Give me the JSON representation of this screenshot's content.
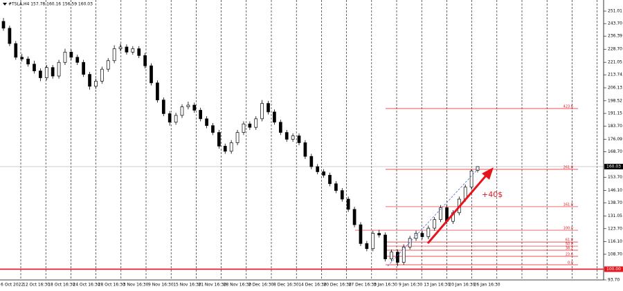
{
  "chart_data": {
    "type": "candlestick",
    "title": "#TSLA,H4 157.78 160.16 156.59 160.03",
    "x_labels": [
      "6 Oct 2022",
      "12 Oct 16:30",
      "18 Oct 16:30",
      "24 Oct 16:30",
      "28 Oct 16:30",
      "3 Nov 16:30",
      "9 Nov 16:30",
      "15 Nov 16:30",
      "21 Nov 16:30",
      "28 Nov 16:30",
      "2 Dec 16:30",
      "8 Dec 16:30",
      "14 Dec 16:30",
      "20 Dec 16:30",
      "27 Dec 16:30",
      "3 Jan 16:30",
      "9 Jan 16:30",
      "13 Jan 16:30",
      "20 Jan 16:30",
      "26 Jan 16:30"
    ],
    "ohlc": [
      [
        245,
        247,
        239.5,
        241
      ],
      [
        241,
        242.5,
        230.5,
        232
      ],
      [
        232,
        233.5,
        222.5,
        224
      ],
      [
        224,
        226,
        221.5,
        223
      ],
      [
        223,
        224.5,
        218.5,
        220
      ],
      [
        220,
        222,
        214.5,
        216
      ],
      [
        216,
        217.5,
        210,
        212
      ],
      [
        212,
        219.5,
        210.5,
        218
      ],
      [
        218,
        219.5,
        211.5,
        213
      ],
      [
        213,
        222.5,
        211.5,
        221
      ],
      [
        221,
        229,
        219.5,
        227
      ],
      [
        227,
        228.5,
        222.5,
        224
      ],
      [
        224,
        225.5,
        219.5,
        221
      ],
      [
        221,
        222.5,
        212.5,
        214
      ],
      [
        214,
        215.5,
        205,
        207
      ],
      [
        207,
        211.5,
        205.5,
        210
      ],
      [
        210,
        218.5,
        208.5,
        217
      ],
      [
        217,
        223.5,
        215.5,
        222
      ],
      [
        222,
        231,
        220.5,
        229
      ],
      [
        229,
        232,
        227.5,
        230
      ],
      [
        230,
        231.5,
        225.5,
        227
      ],
      [
        227,
        230.5,
        225.5,
        229
      ],
      [
        229,
        230.5,
        223.5,
        225
      ],
      [
        225,
        226.5,
        217.5,
        219
      ],
      [
        219,
        220.5,
        207.5,
        209
      ],
      [
        209,
        210.5,
        197.5,
        199
      ],
      [
        199,
        200.5,
        189.5,
        191
      ],
      [
        191,
        192.5,
        184,
        186
      ],
      [
        186,
        191.5,
        184.5,
        190
      ],
      [
        190,
        196.5,
        188.5,
        195
      ],
      [
        195,
        198,
        193.5,
        196
      ],
      [
        196,
        197.5,
        191.5,
        193
      ],
      [
        193,
        194.5,
        186.5,
        188
      ],
      [
        188,
        189.5,
        182.5,
        184
      ],
      [
        184,
        185.5,
        178.5,
        180
      ],
      [
        180,
        181.5,
        170.5,
        172
      ],
      [
        172,
        173.5,
        167.5,
        169
      ],
      [
        169,
        175.5,
        167.5,
        174
      ],
      [
        174,
        181.5,
        172.5,
        180
      ],
      [
        180,
        186.5,
        178.5,
        185
      ],
      [
        185,
        186.5,
        181.5,
        183
      ],
      [
        183,
        189.5,
        181.5,
        188
      ],
      [
        188,
        199,
        186.5,
        197
      ],
      [
        197,
        198.5,
        190.5,
        192
      ],
      [
        192,
        193.5,
        184.5,
        186
      ],
      [
        186,
        187.5,
        178.5,
        180
      ],
      [
        180,
        181.5,
        174.5,
        176
      ],
      [
        176,
        179.5,
        174.5,
        178
      ],
      [
        178,
        179.5,
        172.5,
        174
      ],
      [
        174,
        175.5,
        164.5,
        166
      ],
      [
        166,
        167.5,
        158.5,
        160
      ],
      [
        160,
        161.5,
        155.5,
        157
      ],
      [
        157,
        158.5,
        153.5,
        155
      ],
      [
        155,
        156.5,
        148.5,
        150
      ],
      [
        150,
        151.5,
        144.5,
        146
      ],
      [
        146,
        147.5,
        139.5,
        141
      ],
      [
        141,
        142.5,
        133.5,
        135
      ],
      [
        135,
        136.5,
        124.5,
        126
      ],
      [
        126,
        127.5,
        113.5,
        115
      ],
      [
        115,
        116.5,
        110.5,
        112
      ],
      [
        112,
        122.5,
        110.5,
        121
      ],
      [
        121,
        123,
        118.5,
        120
      ],
      [
        120,
        121.5,
        104.5,
        106
      ],
      [
        106,
        111.5,
        104.5,
        110
      ],
      [
        110,
        111.5,
        101.8,
        104
      ],
      [
        104,
        114.5,
        102.5,
        113
      ],
      [
        113,
        119.5,
        111.5,
        118
      ],
      [
        118,
        122.5,
        116.5,
        121
      ],
      [
        121,
        122.5,
        117.5,
        119
      ],
      [
        119,
        125.5,
        117.5,
        124
      ],
      [
        124,
        130.5,
        122.5,
        129
      ],
      [
        129,
        137.5,
        127.5,
        136
      ],
      [
        136,
        137.5,
        126.5,
        128
      ],
      [
        128,
        134.5,
        126.5,
        133
      ],
      [
        133,
        142.5,
        131.5,
        141
      ],
      [
        141,
        149.5,
        139.5,
        148
      ],
      [
        148,
        158.5,
        146.5,
        157.5
      ],
      [
        157.78,
        160.16,
        156.59,
        160.03
      ]
    ],
    "ylim": [
      93.7,
      257.5
    ],
    "yticks": [
      251.01,
      {
        "value": 243.7,
        "label": "243.70"
      },
      236.39,
      {
        "value": 228.7,
        "label": "228.70"
      },
      221.05,
      213.74,
      206.13,
      198.52,
      191.15,
      {
        "value": 183.7,
        "label": "183.70"
      },
      176.09,
      {
        "value": 168.7,
        "label": "168.70"
      },
      {
        "value": 153.7,
        "label": "153.70"
      },
      {
        "value": 146.1,
        "label": "146.10"
      },
      {
        "value": 138.7,
        "label": "138.70"
      },
      131.05,
      {
        "value": 123.7,
        "label": "123.70"
      },
      {
        "value": 116.1,
        "label": "116.10"
      },
      {
        "value": 108.7,
        "label": "108.70"
      },
      {
        "value": 93.7,
        "label": "93.70"
      }
    ],
    "current_price": 160.03,
    "support_level": {
      "value": 100,
      "label": "100.00"
    },
    "fibonacci": [
      {
        "level": "423.6",
        "price": 194.0
      },
      {
        "level": "261.8",
        "price": 158.4
      },
      {
        "level": "161.8",
        "price": 136.6
      },
      {
        "level": "100.0",
        "price": 122.8
      },
      {
        "level": "61.8",
        "price": 115.9
      },
      {
        "level": "50.0",
        "price": 113.5
      },
      {
        "level": "38.2",
        "price": 111.1
      },
      {
        "level": "23.6",
        "price": 107.5
      },
      {
        "level": "0.0",
        "price": 102.6
      }
    ],
    "annotation": "+40$",
    "grid": true
  }
}
